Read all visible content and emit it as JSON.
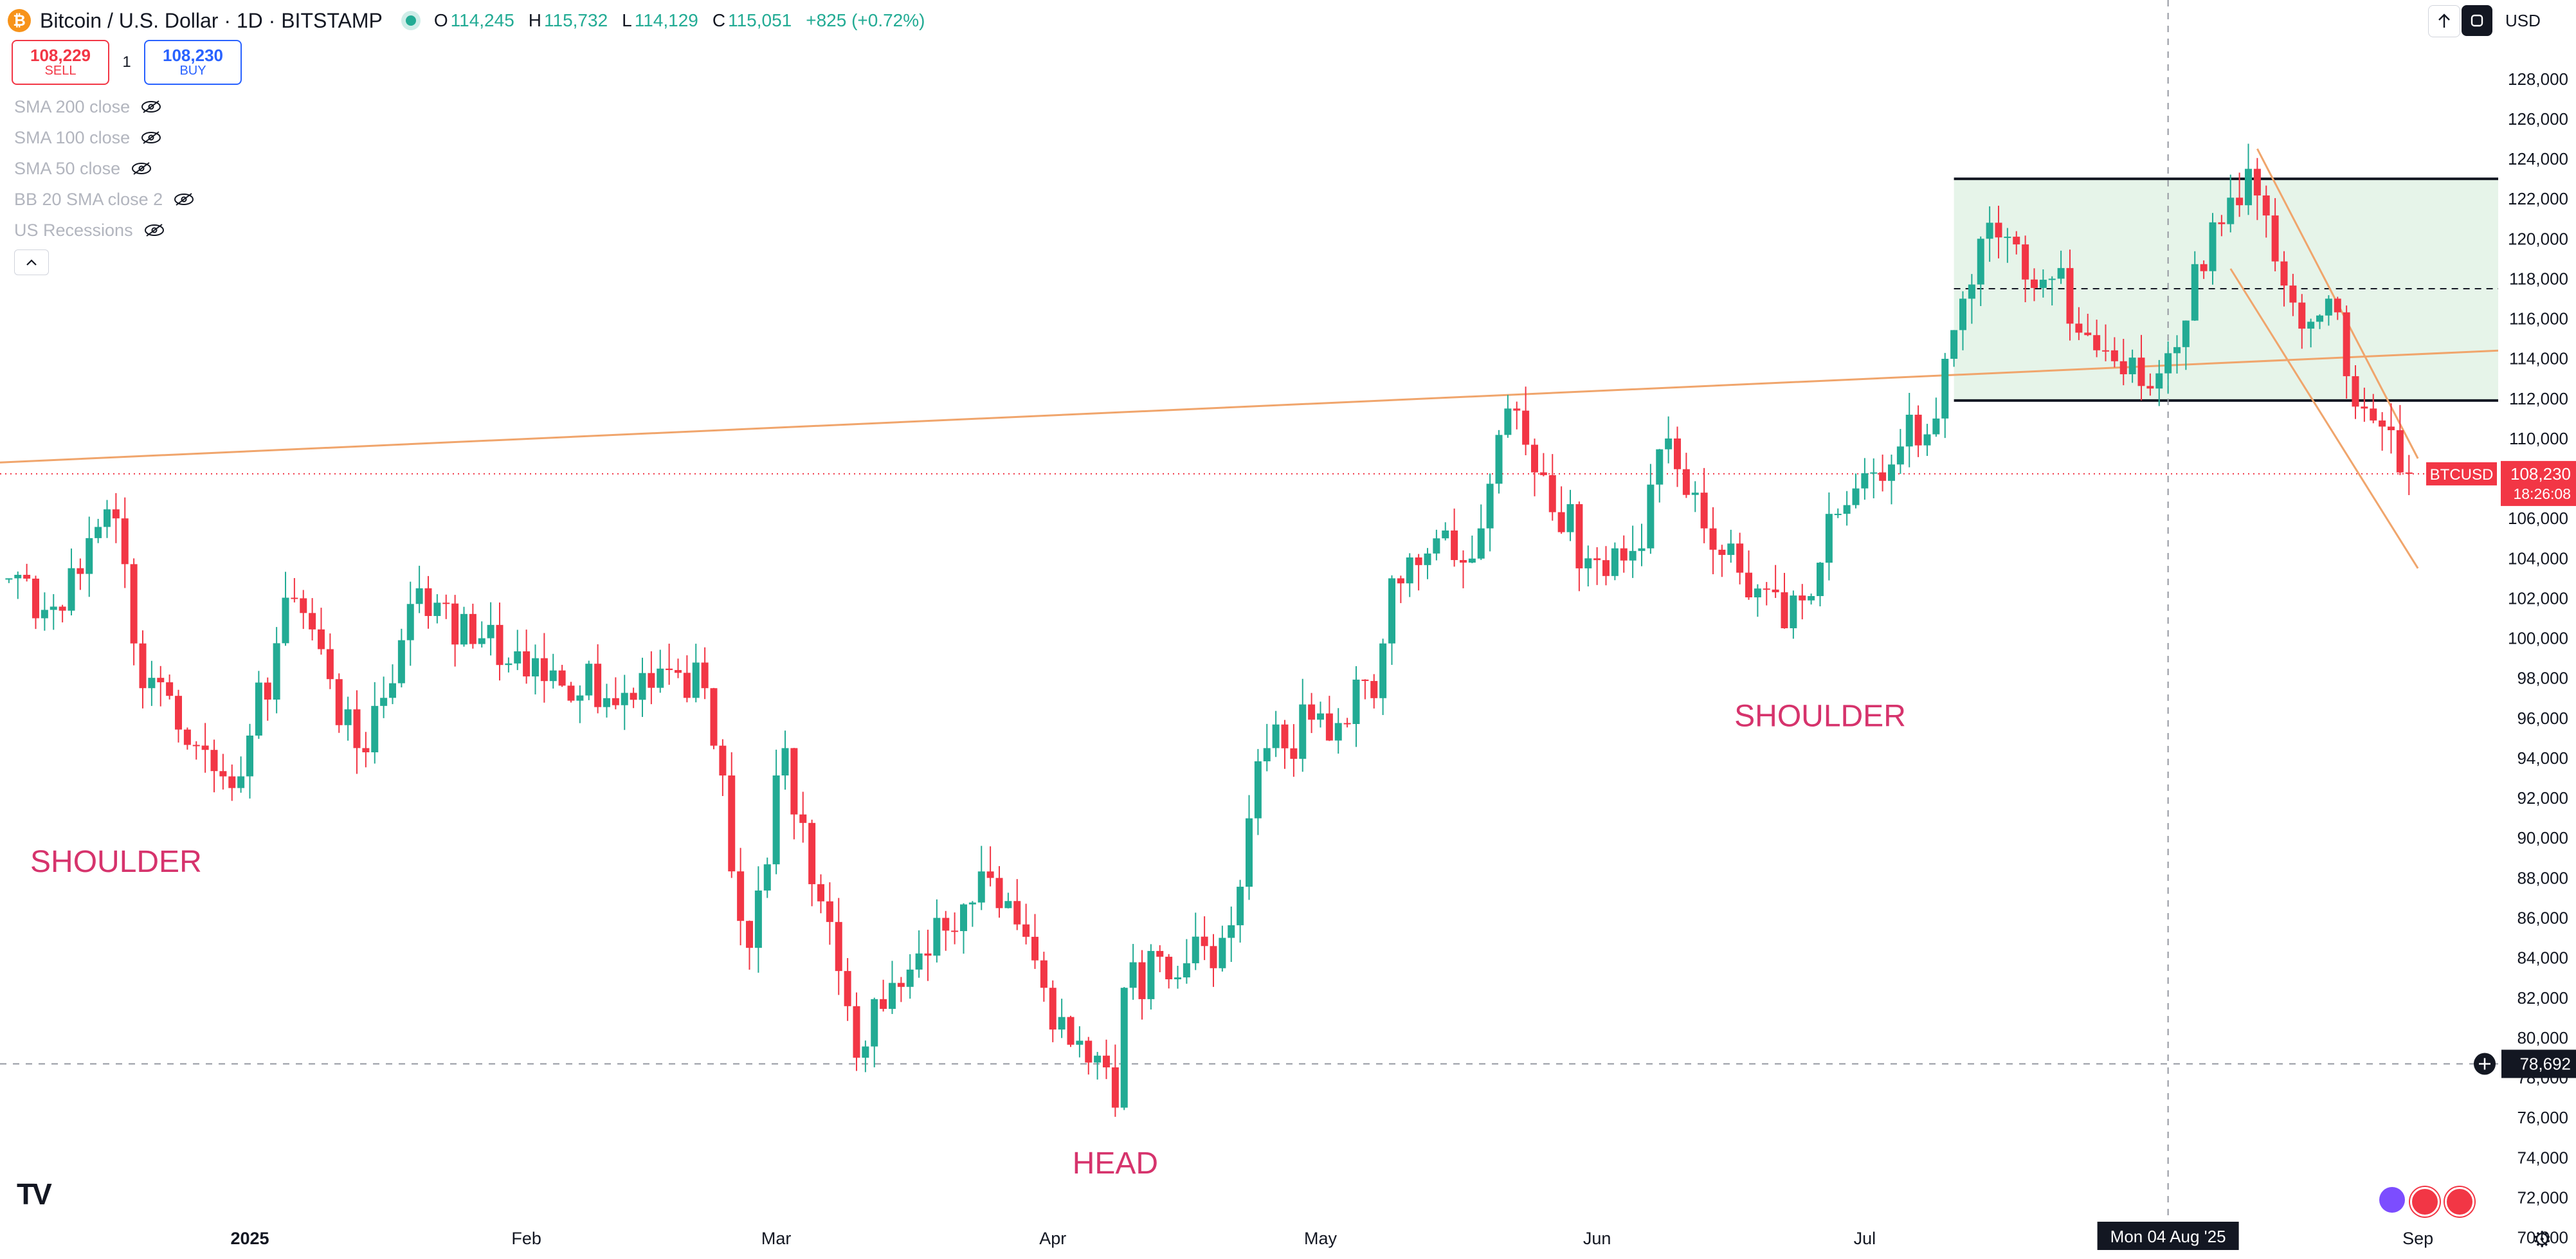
{
  "header": {
    "coin_glyph": "₿",
    "title": "Bitcoin / U.S. Dollar · 1D · BITSTAMP",
    "ohlc": [
      {
        "k": "O",
        "v": "114,245"
      },
      {
        "k": "H",
        "v": "115,732"
      },
      {
        "k": "L",
        "v": "114,129"
      },
      {
        "k": "C",
        "v": "115,051"
      }
    ],
    "change": "+825 (+0.72%)"
  },
  "trade": {
    "sell_price": "108,229",
    "sell_label": "SELL",
    "spread": "1",
    "buy_price": "108,230",
    "buy_label": "BUY"
  },
  "indicators": [
    "SMA 200 close",
    "SMA 100 close",
    "SMA 50 close",
    "BB 20 SMA close 2",
    "US Recessions"
  ],
  "collapse_icon": "chevron-up-icon",
  "currency": "USD",
  "logo": "TV",
  "colors": {
    "up": "#22ab94",
    "down": "#f23645",
    "annotation": "#d6336c",
    "trendline": "#f0a56c",
    "range_fill": "#e6f4e9"
  },
  "chart_data": {
    "type": "candlestick",
    "symbol": "BTCUSD",
    "ylim": [
      69000,
      129000
    ],
    "y_ticks": [
      70000,
      72000,
      74000,
      76000,
      78000,
      80000,
      82000,
      84000,
      86000,
      88000,
      90000,
      92000,
      94000,
      96000,
      98000,
      100000,
      102000,
      104000,
      106000,
      108000,
      110000,
      112000,
      114000,
      116000,
      118000,
      120000,
      122000,
      124000,
      126000,
      128000
    ],
    "x_range": [
      "2024-12-04",
      "2025-09-10"
    ],
    "x_labels": [
      {
        "date": "2025-01-01",
        "label": "2025"
      },
      {
        "date": "2025-02-01",
        "label": "Feb"
      },
      {
        "date": "2025-03-01",
        "label": "Mar"
      },
      {
        "date": "2025-04-01",
        "label": "Apr"
      },
      {
        "date": "2025-05-01",
        "label": "May"
      },
      {
        "date": "2025-06-01",
        "label": "Jun"
      },
      {
        "date": "2025-07-01",
        "label": "Jul"
      },
      {
        "date": "2025-09-01",
        "label": "Sep"
      }
    ],
    "crosshair": {
      "date": "2025-08-04",
      "label": "Mon 04 Aug '25",
      "price": 78692,
      "price_label": "78,692"
    },
    "last_price": {
      "value": 108230,
      "label": "108,230",
      "countdown": "18:26:08"
    },
    "anchors": [
      {
        "date": "2024-12-05",
        "close": 103000
      },
      {
        "date": "2024-12-08",
        "close": 101000
      },
      {
        "date": "2024-12-17",
        "close": 106000
      },
      {
        "date": "2024-12-20",
        "close": 97500
      },
      {
        "date": "2024-12-30",
        "close": 92500
      },
      {
        "date": "2025-01-06",
        "close": 102000
      },
      {
        "date": "2025-01-13",
        "close": 94500
      },
      {
        "date": "2025-01-20",
        "close": 102500
      },
      {
        "date": "2025-01-27",
        "close": 100000
      },
      {
        "date": "2025-02-02",
        "close": 99000
      },
      {
        "date": "2025-02-10",
        "close": 97000
      },
      {
        "date": "2025-02-21",
        "close": 97500
      },
      {
        "date": "2025-02-26",
        "close": 84500
      },
      {
        "date": "2025-03-02",
        "close": 94500
      },
      {
        "date": "2025-03-10",
        "close": 79000
      },
      {
        "date": "2025-03-19",
        "close": 86000
      },
      {
        "date": "2025-03-25",
        "close": 88000
      },
      {
        "date": "2025-03-31",
        "close": 82500
      },
      {
        "date": "2025-04-08",
        "close": 76500
      },
      {
        "date": "2025-04-09",
        "close": 82500
      },
      {
        "date": "2025-04-20",
        "close": 85000
      },
      {
        "date": "2025-04-25",
        "close": 94500
      },
      {
        "date": "2025-05-07",
        "close": 97000
      },
      {
        "date": "2025-05-09",
        "close": 103000
      },
      {
        "date": "2025-05-19",
        "close": 105500
      },
      {
        "date": "2025-05-22",
        "close": 111500
      },
      {
        "date": "2025-05-31",
        "close": 104000
      },
      {
        "date": "2025-06-06",
        "close": 104500
      },
      {
        "date": "2025-06-09",
        "close": 110000
      },
      {
        "date": "2025-06-13",
        "close": 105500
      },
      {
        "date": "2025-06-22",
        "close": 100500
      },
      {
        "date": "2025-06-30",
        "close": 107500
      },
      {
        "date": "2025-07-09",
        "close": 111000
      },
      {
        "date": "2025-07-14",
        "close": 120000
      },
      {
        "date": "2025-07-22",
        "close": 118000
      },
      {
        "date": "2025-08-02",
        "close": 112500
      },
      {
        "date": "2025-08-13",
        "close": 123500
      },
      {
        "date": "2025-08-19",
        "close": 115500
      },
      {
        "date": "2025-08-22",
        "close": 117000
      },
      {
        "date": "2025-08-26",
        "close": 111500
      },
      {
        "date": "2025-08-30",
        "close": 108300
      },
      {
        "date": "2025-08-31",
        "close": 108230
      }
    ],
    "range_box": {
      "start": "2025-07-11",
      "end": "2025-09-05",
      "top": 123000,
      "bottom": 111900,
      "mid": 117500
    },
    "trendlines": [
      {
        "x1": "2024-12-04",
        "y1": 108800,
        "x2": "2025-09-10",
        "y2": 114400
      },
      {
        "x1": "2025-08-14",
        "y1": 124500,
        "x2": "2025-09-01",
        "y2": 109000
      },
      {
        "x1": "2025-08-11",
        "y1": 118500,
        "x2": "2025-09-01",
        "y2": 103500
      }
    ],
    "support_line": 78692,
    "annotations": [
      {
        "text": "SHOULDER",
        "date": "2024-12-17",
        "price": 88300
      },
      {
        "text": "HEAD",
        "date": "2025-04-08",
        "price": 73200
      },
      {
        "text": "SHOULDER",
        "date": "2025-06-26",
        "price": 95600
      }
    ]
  }
}
